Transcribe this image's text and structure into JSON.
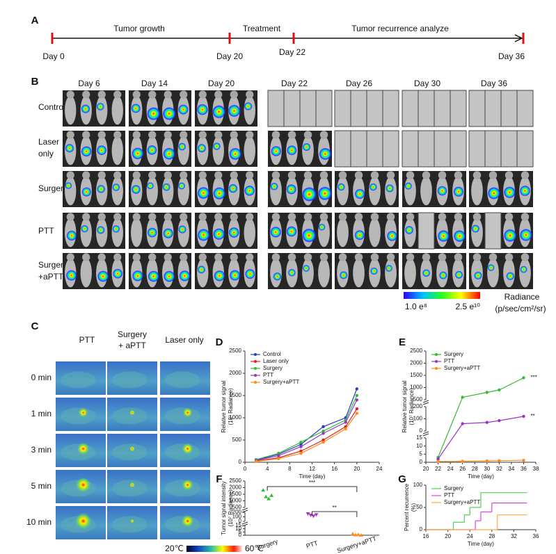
{
  "panel_labels": [
    "A",
    "B",
    "C",
    "D",
    "E",
    "F",
    "G"
  ],
  "timeline": {
    "phases": [
      "Tumor growth",
      "Treatment",
      "Tumor recurrence analyze"
    ],
    "days": [
      "Day 0",
      "Day 20",
      "Day 22",
      "Day 36"
    ]
  },
  "imaging": {
    "days": [
      "Day 6",
      "Day 14",
      "Day 20",
      "Day 22",
      "Day 26",
      "Day 30",
      "Day 36"
    ],
    "groups": [
      [
        "Control"
      ],
      [
        "Laser",
        "only"
      ],
      [
        "Surgery"
      ],
      [
        "PTT"
      ],
      [
        "Surgery",
        "+aPTT"
      ]
    ],
    "colorbar": {
      "min": "1.0 e⁸",
      "max": "2.5 e¹⁰",
      "title": "Radiance",
      "unit": "(p/sec/cm²/sr)"
    }
  },
  "thermal": {
    "groups": [
      [
        "PTT"
      ],
      [
        "Surgery",
        "+ aPTT"
      ],
      [
        "Laser only"
      ]
    ],
    "times": [
      "0 min",
      "1 min",
      "3 min",
      "5 min",
      "10 min"
    ],
    "colorbar": {
      "min": "20℃",
      "max": "60℃"
    }
  },
  "chart_data": [
    {
      "type": "line",
      "xlabel": "Time (day)",
      "ylabel": [
        "Relative tumor signal",
        "(10⁷ Radiance)"
      ],
      "x": [
        2,
        6,
        10,
        14,
        18,
        20
      ],
      "xlim": [
        0,
        24
      ],
      "xticks": [
        0,
        4,
        8,
        12,
        16,
        20,
        24
      ],
      "ylim": [
        0,
        2500
      ],
      "yticks": [
        0,
        500,
        1000,
        1500,
        2000,
        2500
      ],
      "legend": "upper left",
      "series": [
        {
          "name": "Control",
          "color": "#2040c0",
          "values": [
            50,
            180,
            400,
            800,
            1000,
            1650
          ]
        },
        {
          "name": "Laser only",
          "color": "#e02020",
          "values": [
            30,
            100,
            250,
            500,
            800,
            1200
          ]
        },
        {
          "name": "Surgery",
          "color": "#33bb33",
          "values": [
            60,
            200,
            450,
            700,
            950,
            1500
          ]
        },
        {
          "name": "PTT",
          "color": "#9933cc",
          "values": [
            40,
            150,
            350,
            650,
            900,
            1400
          ]
        },
        {
          "name": "Surgery+aPTT",
          "color": "#ff8c1a",
          "values": [
            20,
            80,
            200,
            450,
            750,
            1100
          ]
        }
      ]
    },
    {
      "type": "line",
      "xlabel": "Time (day)",
      "ylabel": [
        "Relative tumor signal",
        "(10⁷ Radiance)"
      ],
      "x": [
        22,
        26,
        30,
        32,
        36
      ],
      "xlim": [
        20,
        38
      ],
      "xticks": [
        20,
        22,
        24,
        26,
        28,
        30,
        32,
        34,
        36,
        38
      ],
      "y_segments": [
        {
          "ylim": [
            0,
            15
          ],
          "yticks": [
            0,
            5,
            10,
            15
          ]
        },
        {
          "ylim": [
            0,
            200
          ],
          "yticks": [
            0,
            100,
            200
          ]
        },
        {
          "ylim": [
            500,
            2500
          ],
          "yticks": [
            500,
            1000,
            1500,
            2000,
            2500
          ]
        }
      ],
      "legend": "upper left",
      "series": [
        {
          "name": "Surgery",
          "color": "#33bb33",
          "values": [
            3,
            600,
            800,
            900,
            1400
          ]
        },
        {
          "name": "PTT",
          "color": "#9933cc",
          "values": [
            2,
            60,
            70,
            85,
            120
          ]
        },
        {
          "name": "Surgery+aPTT",
          "color": "#ff8c1a",
          "values": [
            0.5,
            0.6,
            0.8,
            1,
            1.2
          ]
        }
      ],
      "annotations": [
        "***",
        "**"
      ]
    },
    {
      "type": "dot",
      "ylabel": [
        "Tumor signal intensity",
        "(10⁷ Radiance)"
      ],
      "categories": [
        "Surgery",
        "PTT",
        "Surgery+aPTT"
      ],
      "values": [
        [
          1800,
          1300,
          1150,
          1400
        ],
        [
          170,
          140,
          120,
          150
        ],
        [
          2,
          0.5,
          1,
          0
        ]
      ],
      "colors": [
        "#33bb33",
        "#aa33cc",
        "#ff8c1a"
      ],
      "y_segments": [
        {
          "ylim": [
            0,
            15
          ],
          "yticks": [
            0,
            5,
            10,
            15
          ]
        },
        {
          "ylim": [
            0,
            200
          ],
          "yticks": [
            0,
            100,
            200
          ]
        },
        {
          "ylim": [
            500,
            2500
          ],
          "yticks": [
            500,
            1000,
            1500,
            2000,
            2500
          ]
        }
      ],
      "annotations": [
        "***",
        "**"
      ]
    },
    {
      "type": "step",
      "xlabel": "Time (day)",
      "ylabel": [
        "Percent recurrence",
        "(%)"
      ],
      "xlim": [
        16,
        36
      ],
      "xticks": [
        16,
        20,
        24,
        28,
        32,
        36
      ],
      "ylim": [
        0,
        100
      ],
      "yticks": [
        0,
        50,
        100
      ],
      "legend": "upper left",
      "series": [
        {
          "name": "Surgery",
          "color": "#55cc55",
          "x": [
            16,
            21,
            23,
            24,
            26
          ],
          "values": [
            0,
            16.7,
            33.3,
            50,
            83.3
          ]
        },
        {
          "name": "PTT",
          "color": "#dd44dd",
          "x": [
            16,
            25,
            26,
            28
          ],
          "values": [
            0,
            20,
            40,
            60
          ]
        },
        {
          "name": "Surgery+aPTT",
          "color": "#ffaa44",
          "x": [
            16,
            29
          ],
          "values": [
            0,
            33.3
          ]
        }
      ]
    }
  ]
}
